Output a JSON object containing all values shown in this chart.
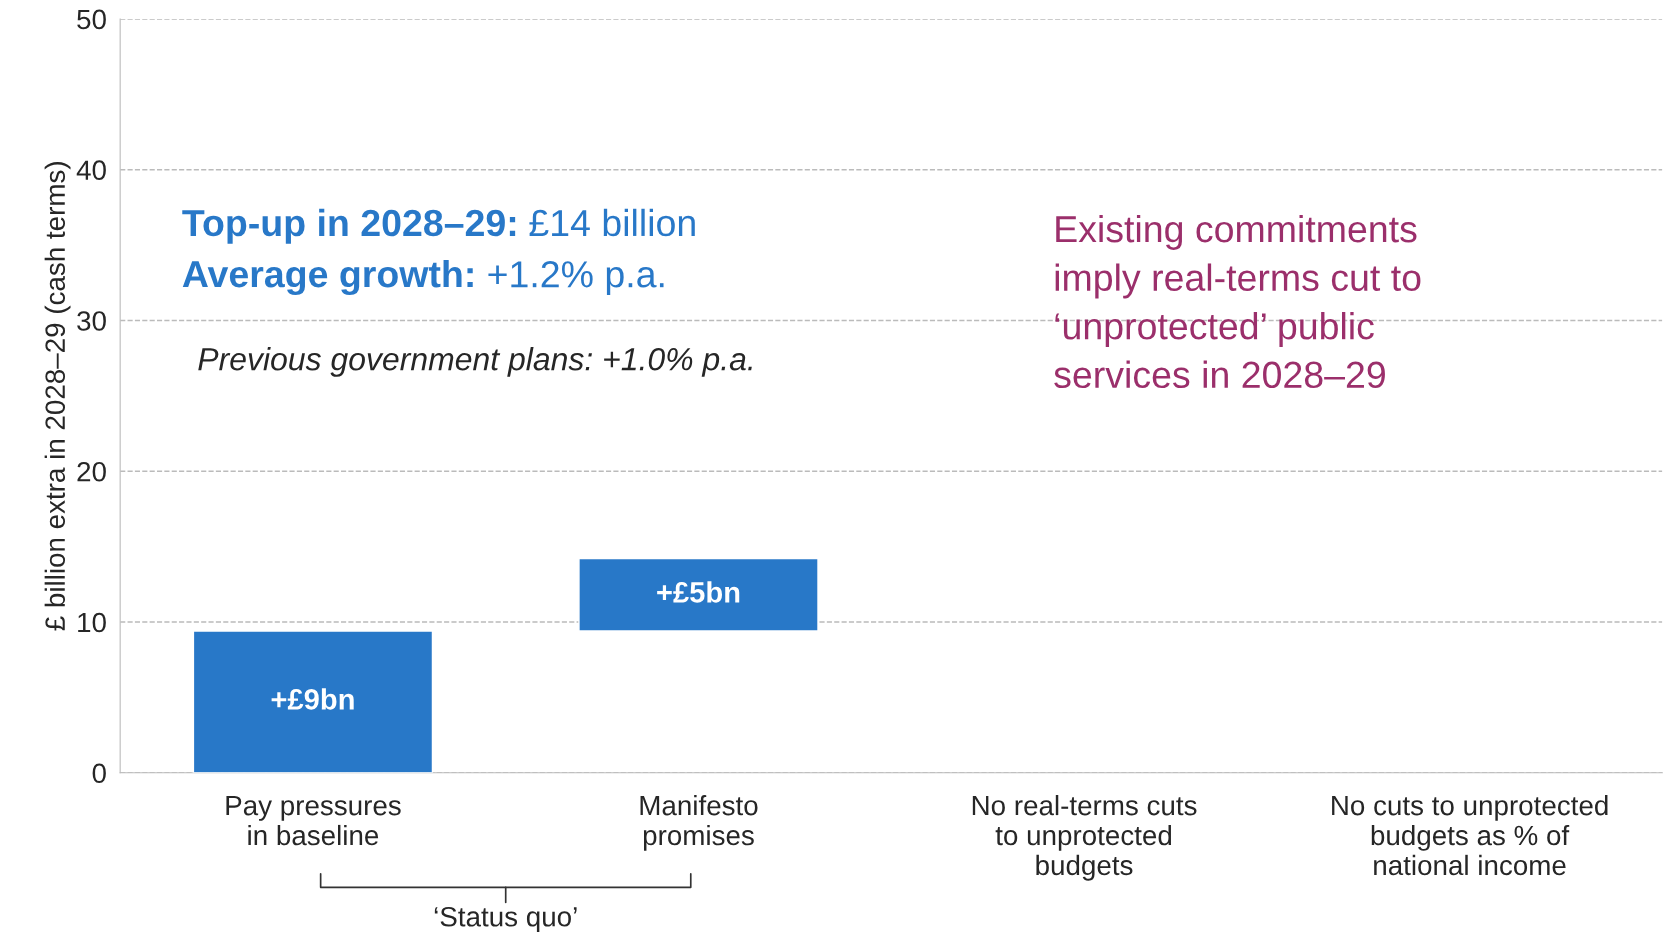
{
  "chart_data": {
    "type": "bar",
    "ylabel": "£ billion extra in 2028–29 (cash terms)",
    "categories": [
      "Pay pressures\nin baseline",
      "Manifesto\npromises",
      "No real-terms cuts\nto unprotected\nbudgets",
      "No cuts to unprotected\nbudgets as % of\nnational income"
    ],
    "values": [
      9.4,
      4.8,
      null,
      null
    ],
    "base": [
      0,
      9.4,
      null,
      null
    ],
    "value_labels": [
      "+£9bn",
      "+£5bn",
      null,
      null
    ],
    "color": "#2878c8",
    "ylim": [
      0,
      50
    ],
    "yticks": [
      0,
      10,
      20,
      30,
      40,
      50
    ],
    "grid": "y",
    "annotations": [
      "Top-up in 2028–29:",
      "£14 billion",
      "Average growth:",
      "+1.2% p.a.",
      "Previous government plans: +1.0% p.a.",
      "Existing commitments\nimply real-terms cut to\n‘unprotected’ public\nservices in 2028–29",
      "‘Status quo’"
    ]
  }
}
